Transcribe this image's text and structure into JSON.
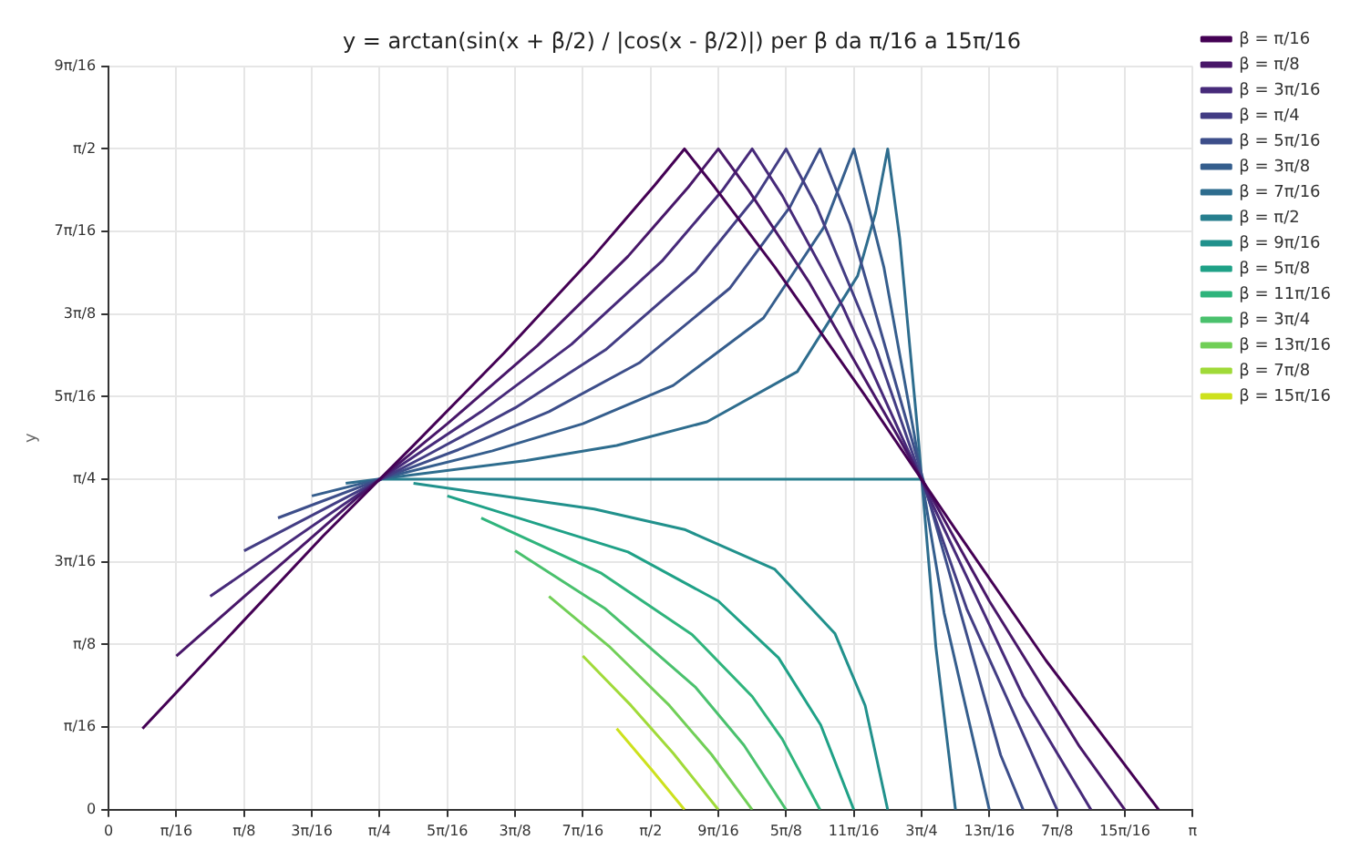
{
  "chart_data": {
    "type": "line",
    "title": "y = arctan(sin(x + β/2) / |cos(x - β/2)|) per β da π/16 a 15π/16",
    "ylabel": "y",
    "xlim": [
      0,
      3.1416
    ],
    "ylim": [
      0,
      1.7671
    ],
    "xticks": [
      0,
      {
        "value": 0.1963,
        "label": "π/16"
      },
      {
        "value": 0.3927,
        "label": "π/8"
      },
      {
        "value": 0.589,
        "label": "3π/16"
      },
      {
        "value": 0.7854,
        "label": "π/4"
      },
      {
        "value": 0.9817,
        "label": "5π/16"
      },
      {
        "value": 1.1781,
        "label": "3π/8"
      },
      {
        "value": 1.3744,
        "label": "7π/16"
      },
      {
        "value": 1.5708,
        "label": "π/2"
      },
      {
        "value": 1.7671,
        "label": "9π/16"
      },
      {
        "value": 1.9635,
        "label": "5π/8"
      },
      {
        "value": 2.1598,
        "label": "11π/16"
      },
      {
        "value": 2.3562,
        "label": "3π/4"
      },
      {
        "value": 2.5525,
        "label": "13π/16"
      },
      {
        "value": 2.7489,
        "label": "7π/8"
      },
      {
        "value": 2.9452,
        "label": "15π/16"
      },
      {
        "value": 3.1416,
        "label": "π"
      }
    ],
    "yticks": [
      0,
      {
        "value": 0.1963,
        "label": "π/16"
      },
      {
        "value": 0.3927,
        "label": "π/8"
      },
      {
        "value": 0.589,
        "label": "3π/16"
      },
      {
        "value": 0.7854,
        "label": "π/4"
      },
      {
        "value": 0.9817,
        "label": "5π/16"
      },
      {
        "value": 1.1781,
        "label": "3π/8"
      },
      {
        "value": 1.3744,
        "label": "7π/16"
      },
      {
        "value": 1.5708,
        "label": "π/2"
      },
      {
        "value": 1.7671,
        "label": "9π/16"
      }
    ],
    "grid": true,
    "legend": "top right",
    "marker": "none",
    "line_style": "solid",
    "series": [
      {
        "name": "β = π/16",
        "color": "#440154",
        "x": [
          0.0982,
          0.6218,
          0.8836,
          1.1454,
          1.4072,
          1.5817,
          1.669,
          1.7562,
          1.9308,
          2.1926,
          2.4544,
          2.7162,
          3.0434
        ],
        "values": [
          0.1927,
          0.651,
          0.866,
          1.0849,
          1.317,
          1.4834,
          1.5708,
          1.4802,
          1.2898,
          0.984,
          0.6661,
          0.3553,
          0
        ]
      },
      {
        "name": "β = π/8",
        "color": "#481769",
        "x": [
          0.1963,
          0.7199,
          0.9817,
          1.2435,
          1.5053,
          1.6799,
          1.7671,
          1.8544,
          2.0289,
          2.2907,
          2.5525,
          2.8143,
          2.9452
        ],
        "values": [
          0.3655,
          0.7416,
          0.9175,
          1.1037,
          1.3154,
          1.4797,
          1.5708,
          1.4729,
          1.2554,
          0.8831,
          0.496,
          0.1496,
          0
        ]
      },
      {
        "name": "β = 3π/16",
        "color": "#472a7a",
        "x": [
          0.2945,
          0.8181,
          1.0799,
          1.3417,
          1.6035,
          1.7781,
          1.8653,
          1.9526,
          2.1271,
          2.3889,
          2.6507,
          2.8471
        ],
        "values": [
          0.5072,
          0.8029,
          0.9462,
          1.1064,
          1.3039,
          1.4716,
          1.5708,
          1.4594,
          1.1968,
          0.7241,
          0.2692,
          0
        ]
      },
      {
        "name": "β = π/4",
        "color": "#433d84",
        "x": [
          0.3927,
          0.9163,
          1.1781,
          1.4399,
          1.7017,
          1.8762,
          1.9635,
          2.0508,
          2.2253,
          2.4871,
          2.7489
        ],
        "values": [
          0.6155,
          0.8398,
          0.9553,
          1.0931,
          1.2804,
          1.4575,
          1.5708,
          1.436,
          1.0931,
          0.4775,
          0
        ]
      },
      {
        "name": "β = 5π/16",
        "color": "#3d4e8a",
        "x": [
          0.4909,
          1.0145,
          1.2763,
          1.5381,
          1.7999,
          1.9744,
          2.0617,
          2.1489,
          2.3235,
          2.5853,
          2.6507
        ],
        "values": [
          0.6936,
          0.8561,
          0.9462,
          1.0622,
          1.2393,
          1.4324,
          1.5708,
          1.3914,
          0.8929,
          0.1301,
          0
        ]
      },
      {
        "name": "β = 3π/8",
        "color": "#355e8d",
        "x": [
          0.589,
          1.1126,
          1.3744,
          1.6362,
          1.898,
          2.0726,
          2.1598,
          2.2471,
          2.3344,
          2.4216,
          2.5525
        ],
        "values": [
          0.7458,
          0.853,
          0.9175,
          1.0085,
          1.1689,
          1.3842,
          1.5708,
          1.2887,
          0.8947,
          0.4672,
          0
        ]
      },
      {
        "name": "β = 7π/16",
        "color": "#2e6d8e",
        "x": [
          0.6872,
          1.2108,
          1.4726,
          1.7344,
          1.9962,
          2.1708,
          2.2231,
          2.258,
          2.2929,
          2.3453,
          2.3976,
          2.4544
        ],
        "values": [
          0.7757,
          0.8299,
          0.8658,
          0.9221,
          1.0414,
          1.2689,
          1.4196,
          1.5708,
          1.357,
          0.8957,
          0.3866,
          0
        ]
      },
      {
        "name": "β = π/2",
        "color": "#277f8e",
        "x": [
          0.7854,
          2.3562
        ],
        "values": [
          0.7854,
          0.7854
        ]
      },
      {
        "name": "β = 9π/16",
        "color": "#21918c",
        "x": [
          0.8836,
          1.4072,
          1.669,
          1.9308,
          2.1053,
          2.1926,
          2.258
        ],
        "values": [
          0.7757,
          0.7149,
          0.6661,
          0.5714,
          0.4185,
          0.2475,
          0
        ]
      },
      {
        "name": "β = 5π/8",
        "color": "#1fa187",
        "x": [
          0.9817,
          1.5053,
          1.7671,
          1.9417,
          2.0638,
          2.1598
        ],
        "values": [
          0.7458,
          0.6126,
          0.496,
          0.3609,
          0.2014,
          0
        ]
      },
      {
        "name": "β = 11π/16",
        "color": "#2fb47c",
        "x": [
          1.0799,
          1.429,
          1.6908,
          1.8653,
          1.9526,
          2.0617
        ],
        "values": [
          0.6936,
          0.5617,
          0.4166,
          0.2692,
          0.1677,
          0
        ]
      },
      {
        "name": "β = 3π/4",
        "color": "#4ac16d",
        "x": [
          1.1781,
          1.4399,
          1.7017,
          1.8413,
          1.9635
        ],
        "values": [
          0.6155,
          0.4775,
          0.2904,
          0.1534,
          0
        ]
      },
      {
        "name": "β = 13π/16",
        "color": "#71cf57",
        "x": [
          1.2763,
          1.4508,
          1.6253,
          1.7475,
          1.8653
        ],
        "values": [
          0.5072,
          0.3882,
          0.2477,
          0.1311,
          0
        ]
      },
      {
        "name": "β = 7π/8",
        "color": "#a0da39",
        "x": [
          1.3744,
          1.5141,
          1.6362,
          1.7671
        ],
        "values": [
          0.3655,
          0.2477,
          0.1344,
          0
        ]
      },
      {
        "name": "β = 15π/16",
        "color": "#cde11d",
        "x": [
          1.4726,
          1.5773,
          1.669
        ],
        "values": [
          0.1927,
          0.0918,
          0
        ]
      }
    ]
  }
}
